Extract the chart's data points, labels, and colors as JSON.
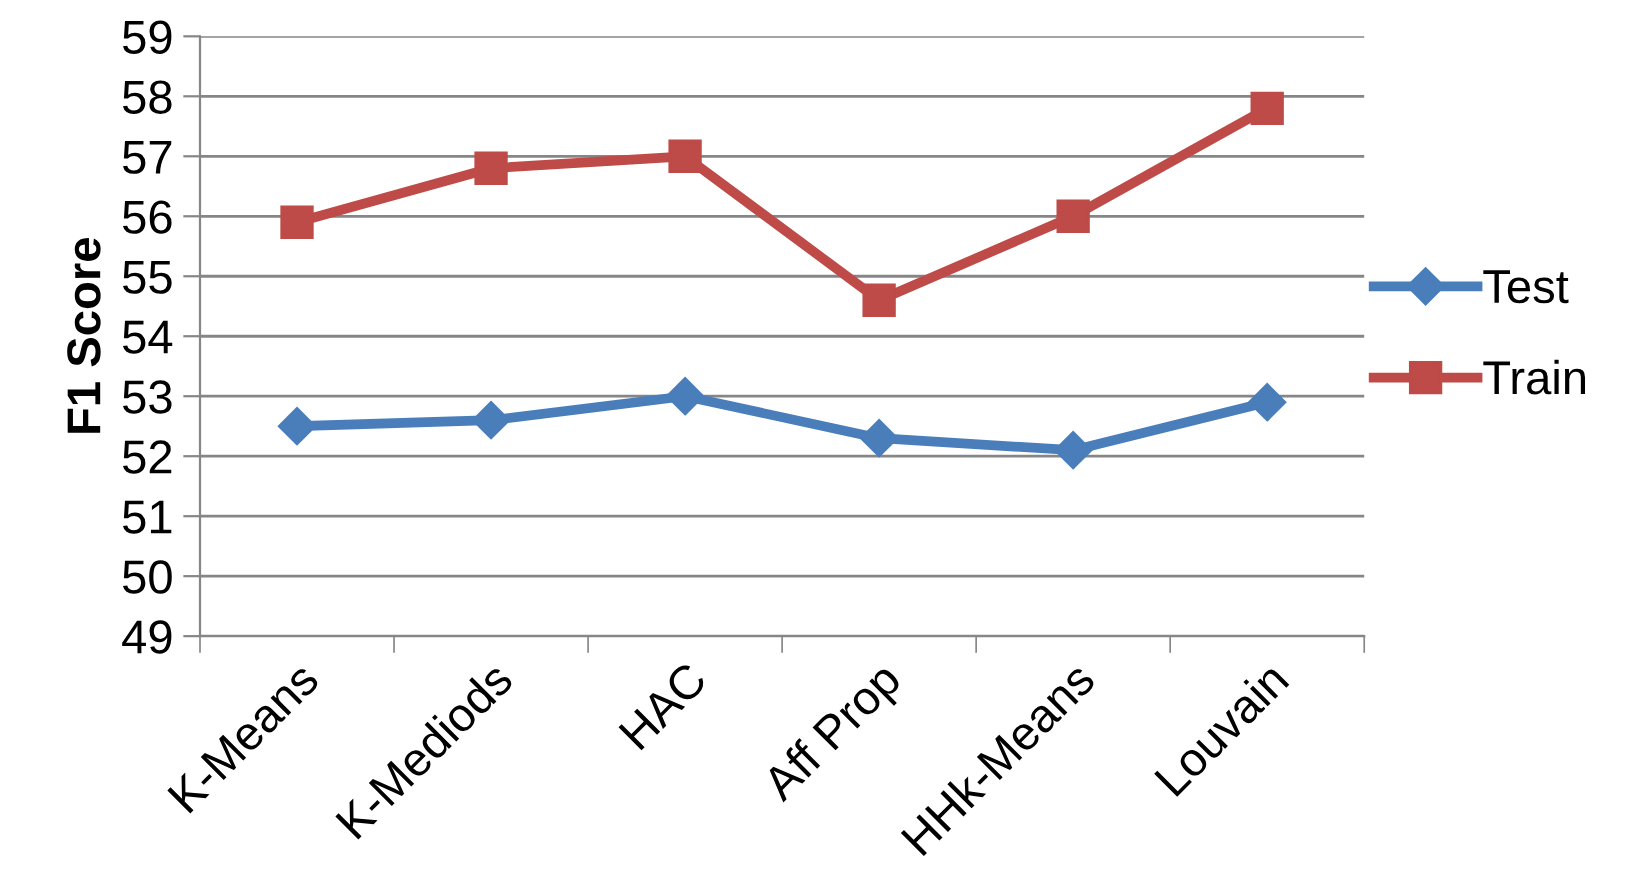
{
  "chart_data": {
    "type": "line",
    "ylabel": "F1 Score",
    "categories": [
      "K-Means",
      "K-Mediods",
      "HAC",
      "Aff Prop",
      "HHk-Means",
      "Louvain"
    ],
    "series": [
      {
        "name": "Test",
        "color": "#4a7ebb",
        "values": [
          52.5,
          52.6,
          53.0,
          52.3,
          52.1,
          52.9
        ],
        "marker": "diamond"
      },
      {
        "name": "Train",
        "color": "#be4b48",
        "values": [
          55.9,
          56.8,
          57.0,
          54.6,
          56.0,
          57.8
        ],
        "marker": "square"
      }
    ],
    "ylim": [
      49,
      59
    ],
    "yticks": [
      49,
      50,
      51,
      52,
      53,
      54,
      55,
      56,
      57,
      58,
      59
    ],
    "grid": "y",
    "legend": "right",
    "line_style": "solid"
  }
}
